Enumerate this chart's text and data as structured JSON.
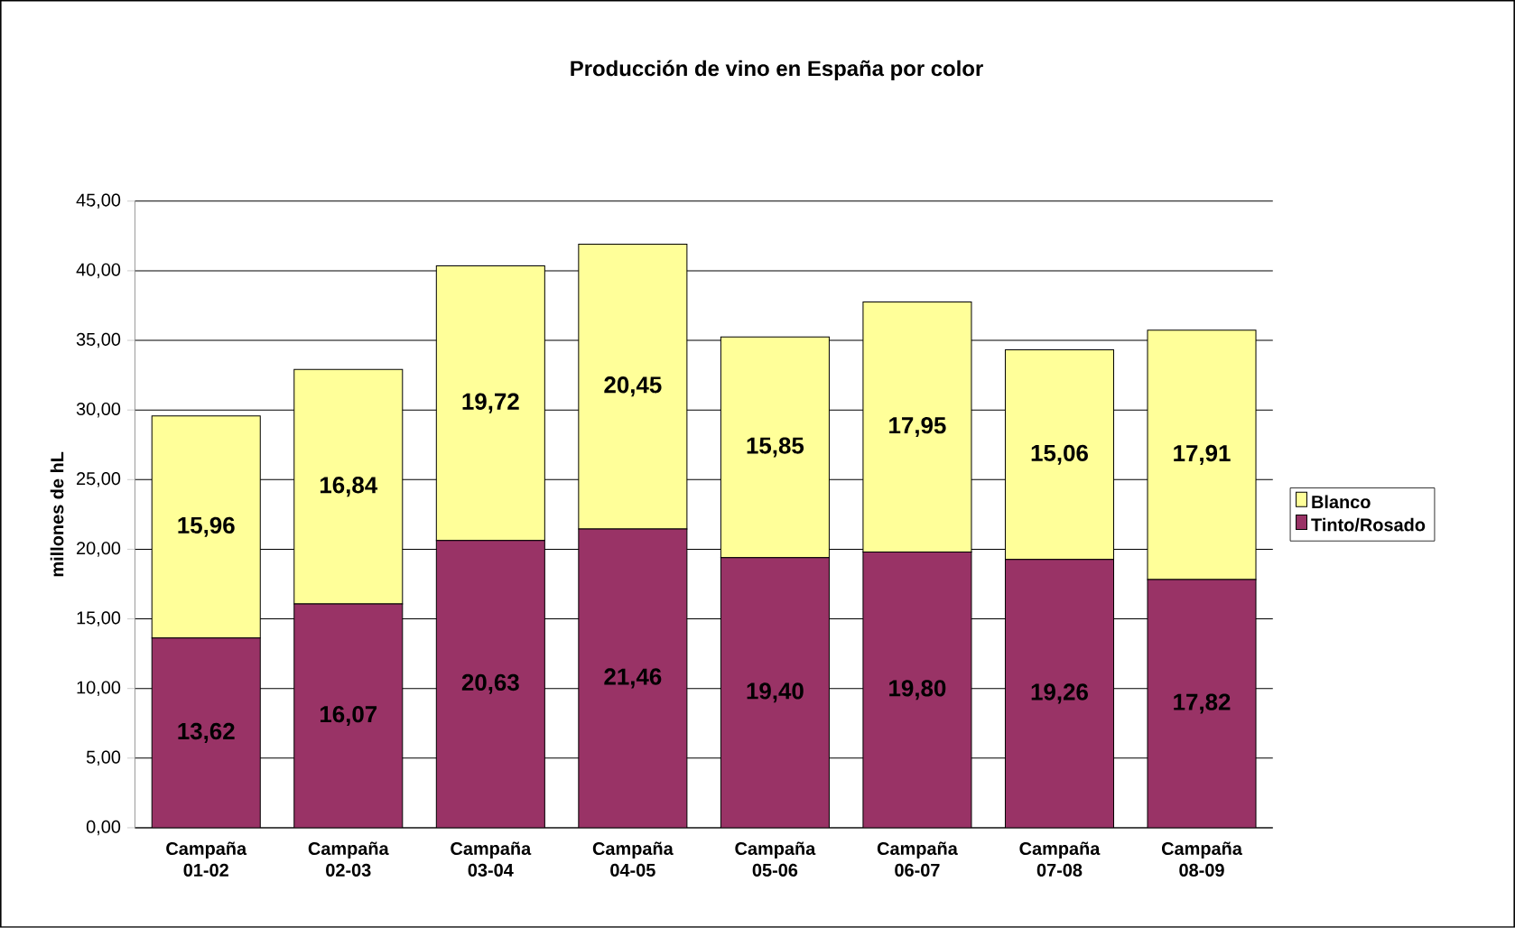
{
  "chart_data": {
    "type": "bar",
    "stacked": true,
    "title": "Producción de vino en España por color",
    "ylabel": "millones de hL",
    "categories": [
      "Campaña 01-02",
      "Campaña 02-03",
      "Campaña 03-04",
      "Campaña 04-05",
      "Campaña 05-06",
      "Campaña 06-07",
      "Campaña 07-08",
      "Campaña 08-09"
    ],
    "series": [
      {
        "name": "Tinto/Rosado",
        "color": "#993366",
        "values": [
          13.62,
          16.07,
          20.63,
          21.46,
          19.4,
          19.8,
          19.26,
          17.82
        ],
        "value_labels": [
          "13,62",
          "16,07",
          "20,63",
          "21,46",
          "19,40",
          "19,80",
          "19,26",
          "17,82"
        ]
      },
      {
        "name": "Blanco",
        "color": "#ffff99",
        "values": [
          15.96,
          16.84,
          19.72,
          20.45,
          15.85,
          17.95,
          15.06,
          17.91
        ],
        "value_labels": [
          "15,96",
          "16,84",
          "19,72",
          "20,45",
          "15,85",
          "17,95",
          "15,06",
          "17,91"
        ]
      }
    ],
    "ylim": [
      0,
      45
    ],
    "yticks": [
      {
        "value": 0,
        "label": "0,00"
      },
      {
        "value": 5,
        "label": "5,00"
      },
      {
        "value": 10,
        "label": "10,00"
      },
      {
        "value": 15,
        "label": "15,00"
      },
      {
        "value": 20,
        "label": "20,00"
      },
      {
        "value": 25,
        "label": "25,00"
      },
      {
        "value": 30,
        "label": "30,00"
      },
      {
        "value": 35,
        "label": "35,00"
      },
      {
        "value": 40,
        "label": "40,00"
      },
      {
        "value": 45,
        "label": "45,00"
      }
    ],
    "grid": "y",
    "legend": "right"
  }
}
